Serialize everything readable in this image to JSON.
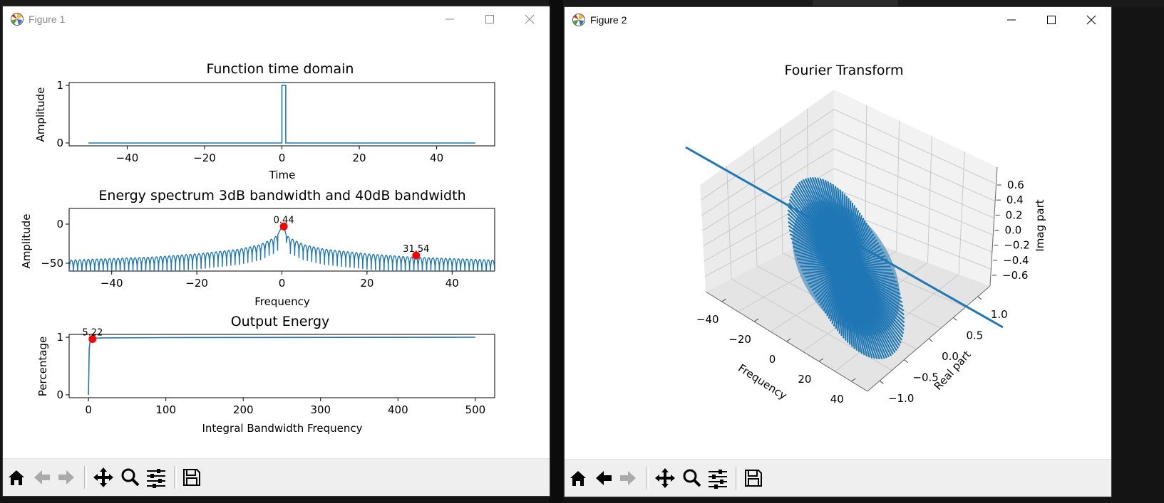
{
  "fig1": {
    "title": "Figure 1",
    "plot1": {
      "title": "Function time domain",
      "ylabel": "Amplitude",
      "xlabel": "Time",
      "xticks": [
        "−40",
        "−20",
        "0",
        "20",
        "40"
      ],
      "yticks": [
        "0",
        "1"
      ]
    },
    "plot2": {
      "title": "Energy spectrum 3dB bandwidth and 40dB bandwidth",
      "ylabel": "Amplitude",
      "xlabel": "Frequency",
      "xticks": [
        "−40",
        "−20",
        "0",
        "20",
        "40"
      ],
      "yticks": [
        "0",
        "−50"
      ],
      "annot1": "0.44",
      "annot2": "31.54"
    },
    "plot3": {
      "title": "Output Energy",
      "ylabel": "Percentage",
      "xlabel": "Integral Bandwidth Frequency",
      "xticks": [
        "0",
        "100",
        "200",
        "300",
        "400",
        "500"
      ],
      "yticks": [
        "0",
        "1"
      ],
      "annot": "5.22"
    }
  },
  "fig2": {
    "title": "Figure 2",
    "plot": {
      "title": "Fourier Transform",
      "xlabel": "Frequency",
      "ylabel": "Real part",
      "zlabel": "Imag part",
      "xticks": [
        "−40",
        "−20",
        "0",
        "20",
        "40"
      ],
      "yticks": [
        "−1.0",
        "−0.5",
        "0.0",
        "0.5",
        "1.0"
      ],
      "zticks": [
        "0.6",
        "0.4",
        "0.2",
        "0.0",
        "−0.2",
        "−0.4",
        "−0.6"
      ]
    }
  },
  "toolbar_icons": [
    "home-icon",
    "back-arrow-icon",
    "forward-arrow-icon",
    "pan-icon",
    "zoom-icon",
    "configure-subplots-icon",
    "save-icon"
  ],
  "chart_data": [
    {
      "type": "line",
      "title": "Function time domain",
      "xlabel": "Time",
      "ylabel": "Amplitude",
      "xlim": [
        -55,
        55
      ],
      "ylim": [
        -0.05,
        1.05
      ],
      "x": [
        -50,
        0,
        0,
        1,
        1,
        50
      ],
      "y": [
        0,
        0,
        1,
        1,
        0,
        0
      ]
    },
    {
      "type": "line",
      "title": "Energy spectrum 3dB bandwidth and 40dB bandwidth",
      "xlabel": "Frequency",
      "ylabel": "Amplitude",
      "xlim": [
        -50,
        50
      ],
      "ylim": [
        -60,
        20
      ],
      "x": [
        -50,
        -40,
        -30,
        -20,
        -10,
        -5,
        -2,
        -1,
        0,
        0.44,
        1,
        2,
        5,
        10,
        20,
        30,
        40,
        50
      ],
      "y": [
        -46,
        -44,
        -42,
        -38,
        -32,
        -26,
        -18,
        -14,
        -3,
        -3,
        -14,
        -18,
        -26,
        -32,
        -38,
        -42,
        -44,
        -46
      ],
      "markers": [
        {
          "x": 0.44,
          "y": -3,
          "label": "0.44"
        },
        {
          "x": 31.54,
          "y": -40,
          "label": "31.54"
        }
      ]
    },
    {
      "type": "line",
      "title": "Output Energy",
      "xlabel": "Integral Bandwidth Frequency",
      "ylabel": "Percentage",
      "xlim": [
        -25,
        525
      ],
      "ylim": [
        -0.05,
        1.05
      ],
      "x": [
        0,
        1,
        2,
        3,
        5.22,
        10,
        20,
        100,
        500
      ],
      "y": [
        0,
        0.8,
        0.92,
        0.95,
        0.97,
        0.985,
        0.99,
        0.995,
        1.0
      ],
      "markers": [
        {
          "x": 5.22,
          "y": 0.97,
          "label": "5.22"
        }
      ]
    },
    {
      "type": "line",
      "title": "Fourier Transform",
      "xlabel": "Frequency",
      "ylabel": "Real part",
      "zlabel": "Imag part",
      "xlim": [
        -50,
        50
      ],
      "ylim": [
        -1.0,
        1.0
      ],
      "zlim": [
        -0.7,
        0.7
      ]
    }
  ]
}
